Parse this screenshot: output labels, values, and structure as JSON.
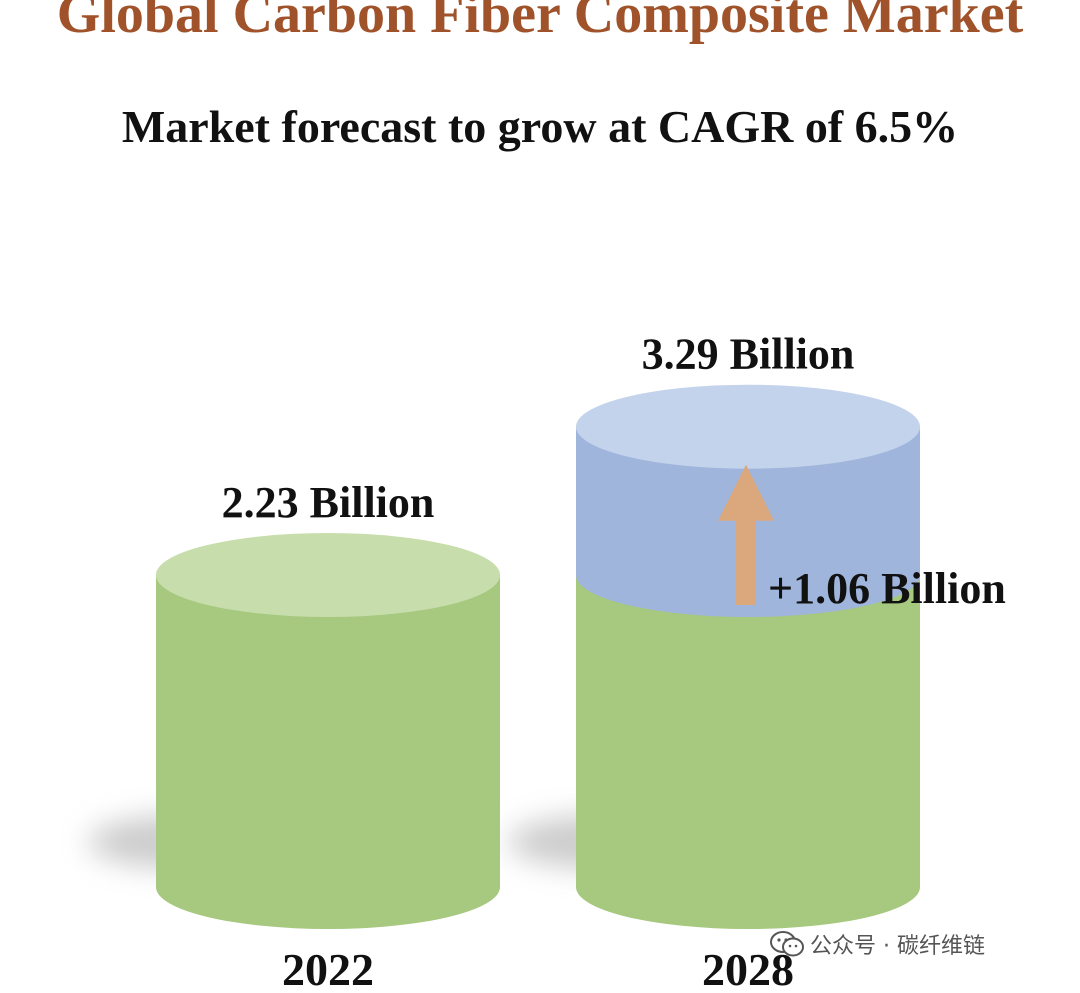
{
  "title": "Global Carbon Fiber Composite Market",
  "subtitle": "Market forecast to grow at CAGR of 6.5%",
  "chart_data": {
    "type": "bar",
    "style": "3d-cylinder",
    "categories": [
      "2022",
      "2028"
    ],
    "values": [
      2.23,
      3.29
    ],
    "value_labels": [
      "2.23 Billion",
      "3.29 Billion"
    ],
    "growth": {
      "value": 1.06,
      "label": "+1.06 Billion"
    },
    "unit": "Billion",
    "cagr": "6.5%",
    "colors": {
      "base": "#a6c87f",
      "base_top": "#c7ddab",
      "growth": "#9fb5dc",
      "growth_top": "#c4d3ec",
      "arrow": "#dba77c"
    },
    "grid": false,
    "legend": "none"
  },
  "watermark": {
    "text": "公众号 · 碳纤维链",
    "icon": "wechat-icon"
  }
}
